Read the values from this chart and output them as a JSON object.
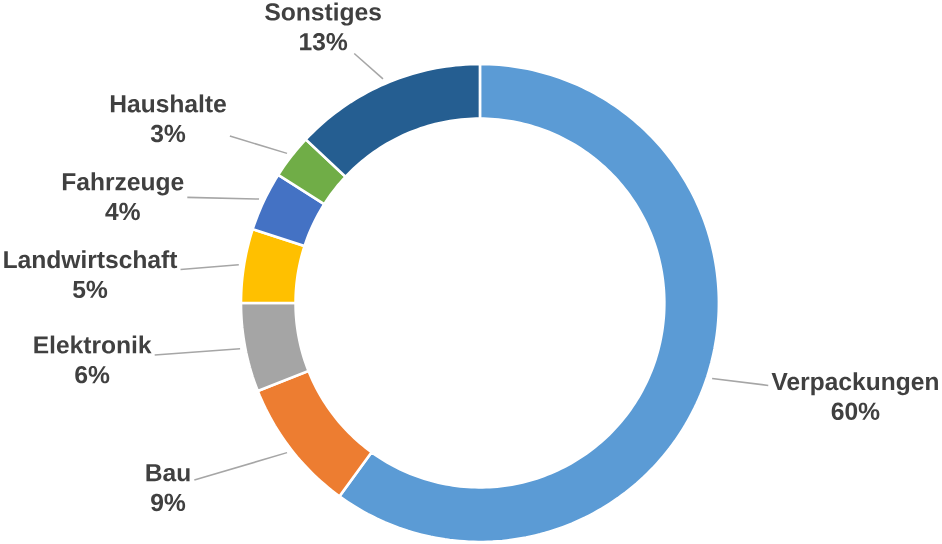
{
  "chart_data": {
    "type": "donut",
    "categories": [
      "Verpackungen",
      "Bau",
      "Elektronik",
      "Landwirtschaft",
      "Fahrzeuge",
      "Haushalte",
      "Sonstiges"
    ],
    "values": [
      60,
      9,
      6,
      5,
      4,
      3,
      13
    ],
    "value_labels": [
      "60%",
      "9%",
      "6%",
      "5%",
      "4%",
      "3%",
      "13%"
    ],
    "colors": [
      "#5b9bd5",
      "#ed7d31",
      "#a5a5a5",
      "#ffc000",
      "#4472c4",
      "#70ad47",
      "#255e91"
    ]
  }
}
